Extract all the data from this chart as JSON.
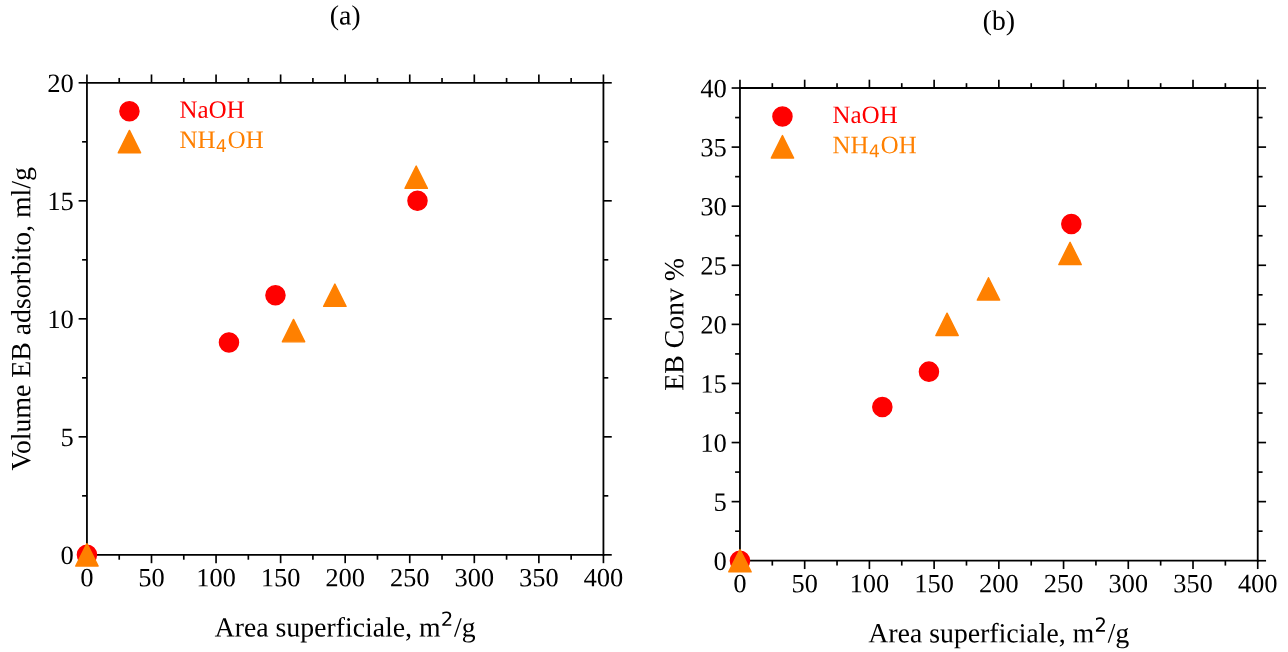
{
  "chart_data": [
    {
      "type": "scatter",
      "title": "(a)",
      "xlabel": "Area superficiale, m$^{2}$/g",
      "ylabel": "Volume EB adsorbito, ml/g",
      "xlim": [
        0,
        400
      ],
      "xticks": [
        0,
        50,
        100,
        150,
        200,
        250,
        300,
        350,
        400
      ],
      "ylim": [
        0,
        20
      ],
      "yticks": [
        0,
        5,
        10,
        15,
        20
      ],
      "grid": false,
      "legend": "top left",
      "series": [
        {
          "name": "NaOH",
          "color": "#ff0000",
          "marker": "circle",
          "x": [
            0,
            110,
            146,
            256
          ],
          "values": [
            0,
            9,
            11,
            15
          ]
        },
        {
          "name": "NH$_{4}$OH",
          "color": "#ff8000",
          "marker": "triangle",
          "x": [
            0,
            160,
            192,
            255
          ],
          "values": [
            0,
            9.5,
            11,
            16
          ]
        }
      ]
    },
    {
      "type": "scatter",
      "title": "(b)",
      "xlabel": "Area superficiale, m$^{2}$/g",
      "ylabel": "EB Conv %",
      "xlim": [
        0,
        400
      ],
      "xticks": [
        0,
        50,
        100,
        150,
        200,
        250,
        300,
        350,
        400
      ],
      "ylim": [
        0,
        40
      ],
      "yticks": [
        0,
        5,
        10,
        15,
        20,
        25,
        30,
        35,
        40
      ],
      "grid": false,
      "legend": "top left",
      "series": [
        {
          "name": "NaOH",
          "color": "#ff0000",
          "marker": "circle",
          "x": [
            0,
            110,
            146,
            256
          ],
          "values": [
            0,
            13,
            16,
            28.5
          ]
        },
        {
          "name": "NH$_{4}$OH",
          "color": "#ff8000",
          "marker": "triangle",
          "x": [
            0,
            160,
            192,
            255
          ],
          "values": [
            0,
            20,
            23,
            26
          ]
        }
      ]
    }
  ]
}
